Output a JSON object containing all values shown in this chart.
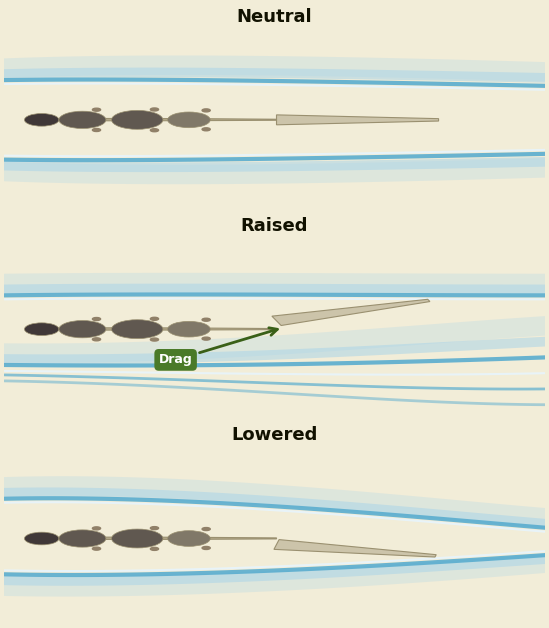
{
  "bg_color": "#f2edd8",
  "header_color": "#f0c840",
  "header_text_color": "#111100",
  "titles": [
    "Neutral",
    "Raised",
    "Lowered"
  ],
  "airfoil_color": "#b5aa8a",
  "airfoil_edge": "#9a9070",
  "aileron_color": "#ccc4aa",
  "flow_blue": "#5aadcf",
  "flow_light": "#aad4e8",
  "flow_white": "#e8f4fa",
  "circle_dark": "#605850",
  "circle_med": "#807868",
  "nose_dark": "#403838",
  "dot_color": "#908068",
  "drag_box": "#4a7a28",
  "drag_text": "#ffffff",
  "drag_arrow": "#3a6018"
}
